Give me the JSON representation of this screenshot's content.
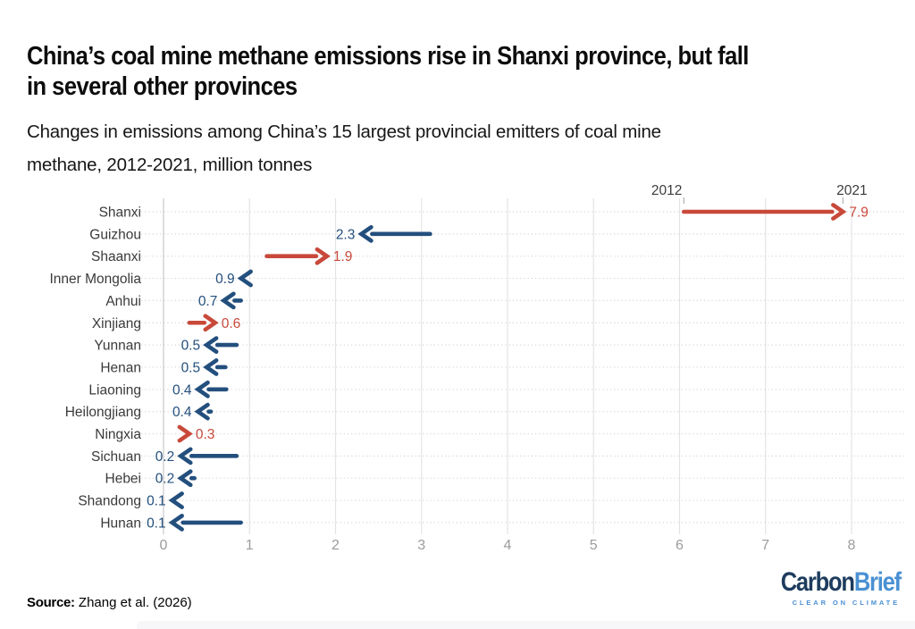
{
  "chart_data": {
    "type": "arrow",
    "title": "China’s coal mine methane emissions rise in Shanxi province, but fall\nin several other provinces",
    "subtitle": "Changes in emissions among China’s 15 largest provincial emitters of coal mine\nmethane, 2012-2021, million tonnes",
    "unit": "million tonnes",
    "start_year_label": "2012",
    "end_year_label": "2021",
    "xlim": [
      0,
      8
    ],
    "x_ticks": [
      0,
      1,
      2,
      3,
      4,
      5,
      6,
      7,
      8
    ],
    "grid": "vertical-solid-with-dotted-row-guides",
    "legend_position": "none",
    "colors": {
      "increase": "#c8493a",
      "decrease": "#234f7d",
      "gridline": "#e4e4e4",
      "zero_gridline": "#c9c9c9",
      "row_guide": "#d6d6d6",
      "axis_text": "#9b9b9b",
      "label_text": "#3a3a3a"
    },
    "rows": [
      {
        "province": "Shanxi",
        "start": 6.05,
        "end": 7.9,
        "label": "7.9",
        "direction": "increase"
      },
      {
        "province": "Guizhou",
        "start": 3.1,
        "end": 2.3,
        "label": "2.3",
        "direction": "decrease"
      },
      {
        "province": "Shaanxi",
        "start": 1.2,
        "end": 1.9,
        "label": "1.9",
        "direction": "increase"
      },
      {
        "province": "Inner Mongolia",
        "start": 1.0,
        "end": 0.9,
        "label": "0.9",
        "direction": "decrease"
      },
      {
        "province": "Anhui",
        "start": 0.9,
        "end": 0.7,
        "label": "0.7",
        "direction": "decrease"
      },
      {
        "province": "Xinjiang",
        "start": 0.3,
        "end": 0.6,
        "label": "0.6",
        "direction": "increase"
      },
      {
        "province": "Yunnan",
        "start": 0.85,
        "end": 0.5,
        "label": "0.5",
        "direction": "decrease"
      },
      {
        "province": "Henan",
        "start": 0.72,
        "end": 0.5,
        "label": "0.5",
        "direction": "decrease"
      },
      {
        "province": "Liaoning",
        "start": 0.73,
        "end": 0.4,
        "label": "0.4",
        "direction": "decrease"
      },
      {
        "province": "Heilongjiang",
        "start": 0.55,
        "end": 0.4,
        "label": "0.4",
        "direction": "decrease"
      },
      {
        "province": "Ningxia",
        "start": 0.25,
        "end": 0.3,
        "label": "0.3",
        "direction": "increase"
      },
      {
        "province": "Sichuan",
        "start": 0.85,
        "end": 0.2,
        "label": "0.2",
        "direction": "decrease"
      },
      {
        "province": "Hebei",
        "start": 0.36,
        "end": 0.2,
        "label": "0.2",
        "direction": "decrease"
      },
      {
        "province": "Shandong",
        "start": 0.16,
        "end": 0.1,
        "label": "0.1",
        "direction": "decrease"
      },
      {
        "province": "Hunan",
        "start": 0.9,
        "end": 0.1,
        "label": "0.1",
        "direction": "decrease"
      }
    ]
  },
  "footer": {
    "source_label": "Source:",
    "source_text": " Zhang et al. (2026)"
  },
  "logo": {
    "name_part1": "Carbon",
    "name_part2": "Brief",
    "tagline": "CLEAR ON CLIMATE"
  }
}
